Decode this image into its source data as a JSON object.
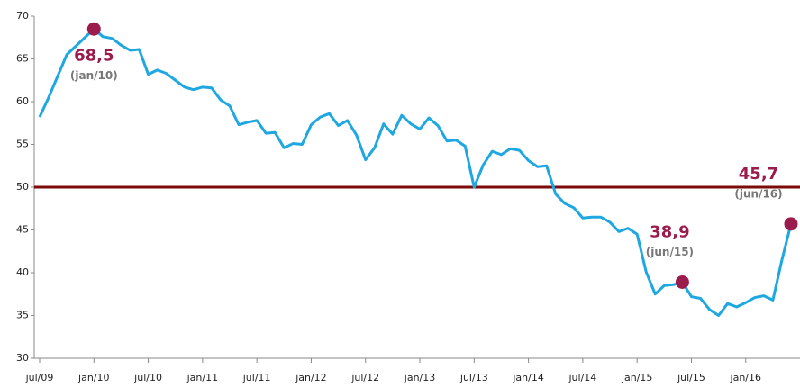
{
  "chart_data": {
    "type": "line",
    "categories": [
      "jul/09",
      null,
      null,
      null,
      null,
      null,
      "jan/10",
      null,
      null,
      null,
      null,
      null,
      "jul/10",
      null,
      null,
      null,
      null,
      null,
      "jan/11",
      null,
      null,
      null,
      null,
      null,
      "jul/11",
      null,
      null,
      null,
      null,
      null,
      "jan/12",
      null,
      null,
      null,
      null,
      null,
      "jul/12",
      null,
      null,
      null,
      null,
      null,
      "jan/13",
      null,
      null,
      null,
      null,
      null,
      "jul/13",
      null,
      null,
      null,
      null,
      null,
      "jan/14",
      null,
      null,
      null,
      null,
      null,
      "jul/14",
      null,
      null,
      null,
      null,
      null,
      "jan/15",
      null,
      null,
      null,
      null,
      null,
      "jul/15",
      null,
      null,
      null,
      null,
      null,
      "jan/16",
      null,
      null,
      null,
      null,
      null
    ],
    "series": [
      {
        "color": "#1ea7e1",
        "marker_color": "#9b1b4d",
        "values": [
          58.2,
          60.5,
          63,
          65.5,
          66.5,
          67.5,
          68.5,
          67.6,
          67.4,
          66.6,
          66,
          66.1,
          63.2,
          63.7,
          63.3,
          62.5,
          61.7,
          61.4,
          61.7,
          61.6,
          60.2,
          59.5,
          57.3,
          57.6,
          57.8,
          56.3,
          56.4,
          54.6,
          55.1,
          55,
          57.3,
          58.2,
          58.6,
          57.2,
          57.8,
          56.1,
          53.2,
          54.6,
          57.4,
          56.2,
          58.4,
          57.4,
          56.8,
          58.1,
          57.2,
          55.4,
          55.5,
          54.8,
          50,
          52.6,
          54.2,
          53.8,
          54.5,
          54.3,
          53.1,
          52.4,
          52.5,
          49.2,
          48.1,
          47.6,
          46.4,
          46.5,
          46.5,
          45.9,
          44.8,
          45.2,
          44.5,
          40.1,
          37.5,
          38.5,
          38.6,
          38.9,
          37.2,
          37,
          35.7,
          35,
          36.4,
          36,
          36.5,
          37.1,
          37.3,
          36.8,
          41.5,
          45.7
        ],
        "value_labels": [
          null,
          null,
          null,
          null,
          null,
          null,
          "68,5",
          null,
          null,
          null,
          null,
          null,
          null,
          null,
          null,
          null,
          null,
          null,
          null,
          null,
          null,
          null,
          null,
          null,
          null,
          null,
          null,
          null,
          null,
          null,
          null,
          null,
          null,
          null,
          null,
          null,
          null,
          null,
          null,
          null,
          null,
          null,
          null,
          null,
          null,
          null,
          null,
          null,
          null,
          null,
          null,
          null,
          null,
          null,
          null,
          null,
          null,
          null,
          null,
          null,
          null,
          null,
          null,
          null,
          null,
          null,
          null,
          null,
          null,
          null,
          null,
          "38,9",
          null,
          null,
          null,
          null,
          null,
          null,
          null,
          null,
          null,
          null,
          null,
          "45,7"
        ],
        "date_labels": [
          null,
          null,
          null,
          null,
          null,
          null,
          "(jan/10)",
          null,
          null,
          null,
          null,
          null,
          null,
          null,
          null,
          null,
          null,
          null,
          null,
          null,
          null,
          null,
          null,
          null,
          null,
          null,
          null,
          null,
          null,
          null,
          null,
          null,
          null,
          null,
          null,
          null,
          null,
          null,
          null,
          null,
          null,
          null,
          null,
          null,
          null,
          null,
          null,
          null,
          null,
          null,
          null,
          null,
          null,
          null,
          null,
          null,
          null,
          null,
          null,
          null,
          null,
          null,
          null,
          null,
          null,
          null,
          null,
          null,
          null,
          null,
          null,
          "(jun/15)",
          null,
          null,
          null,
          null,
          null,
          null,
          null,
          null,
          null,
          null,
          null,
          "(jun/16)"
        ]
      }
    ],
    "reference_line": {
      "value": 50,
      "color": "#7b0a0a"
    },
    "ylim": [
      30,
      70
    ],
    "yticks": [
      30,
      35,
      40,
      45,
      50,
      55,
      60,
      65,
      70
    ],
    "grid": false
  }
}
